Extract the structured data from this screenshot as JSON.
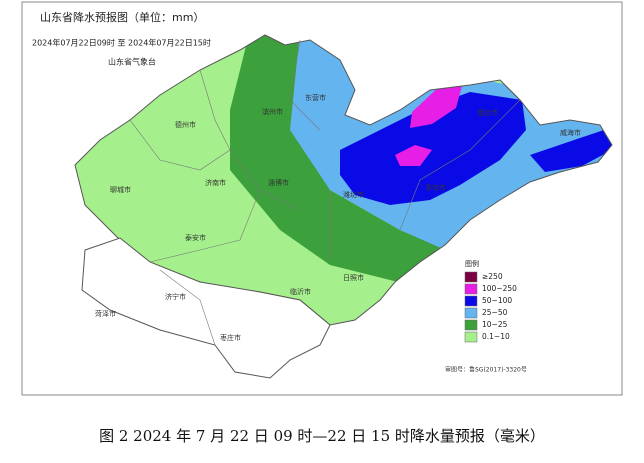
{
  "header": {
    "title": "山东省降水预报图（单位：mm）",
    "period": "2024年07月22日09时 至 2024年07月22日15时",
    "issuer": "山东省气象台"
  },
  "cities": [
    {
      "label": "德州市"
    },
    {
      "label": "滨州市"
    },
    {
      "label": "东营市"
    },
    {
      "label": "烟台市"
    },
    {
      "label": "威海市"
    },
    {
      "label": "聊城市"
    },
    {
      "label": "济南市"
    },
    {
      "label": "淄博市"
    },
    {
      "label": "潍坊市"
    },
    {
      "label": "青岛市"
    },
    {
      "label": "泰安市"
    },
    {
      "label": "济宁市"
    },
    {
      "label": "临沂市"
    },
    {
      "label": "日照市"
    },
    {
      "label": "菏泽市"
    },
    {
      "label": "枣庄市"
    }
  ],
  "legend": {
    "title": "图例",
    "items": [
      {
        "label": "≥250",
        "color": "#7b0041"
      },
      {
        "label": "100~250",
        "color": "#e61ee6"
      },
      {
        "label": "50~100",
        "color": "#0a0ae6"
      },
      {
        "label": "25~50",
        "color": "#64b4f0"
      },
      {
        "label": "10~25",
        "color": "#3ca03c"
      },
      {
        "label": "0.1~10",
        "color": "#a5f08c"
      }
    ]
  },
  "review_number": "审图号：鲁SG(2017)-3320号",
  "caption": "图 2 2024 年 7 月 22 日 09 时—22 日 15 时降水量预报（毫米）"
}
